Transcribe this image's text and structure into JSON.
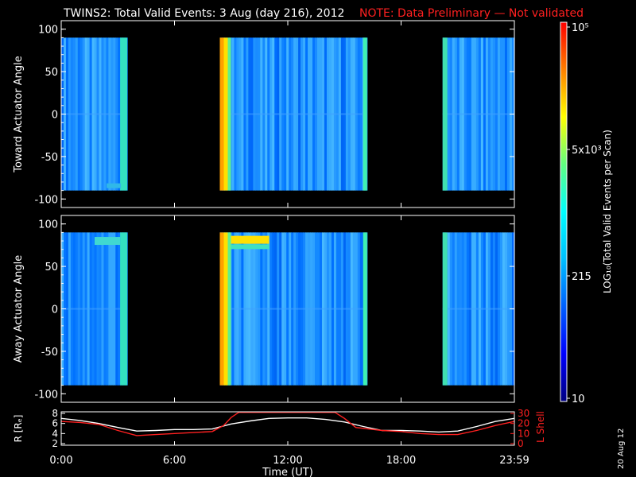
{
  "title": {
    "main": "TWINS2: Total Valid Events:  3 Aug (day 216), 2012",
    "note": "NOTE: Data Preliminary — Not validated",
    "note_color": "#ff2020"
  },
  "side_date": "20 Aug 12",
  "chart_data": [
    {
      "type": "heatmap",
      "name_text": "Toward Actuator Angle",
      "ylabel": "Toward Actuator Angle",
      "xlabel": "",
      "xlim": [
        0,
        24
      ],
      "ylim": [
        -110,
        110
      ],
      "y_ticks": [
        100,
        50,
        0,
        -50,
        -100
      ],
      "y_tick_labels": [
        "100",
        "50",
        "0",
        "-50",
        "-100"
      ],
      "data_range": [
        -90,
        90
      ],
      "data_blocks_hours": [
        [
          0,
          3.5
        ],
        [
          8.4,
          16.2
        ],
        [
          20.2,
          24
        ]
      ]
    },
    {
      "type": "heatmap",
      "name_text": "Away Actuator Angle",
      "ylabel": "Away Actuator Angle",
      "xlabel": "",
      "xlim": [
        0,
        24
      ],
      "ylim": [
        -110,
        110
      ],
      "y_ticks": [
        100,
        50,
        0,
        -50,
        -100
      ],
      "y_tick_labels": [
        "100",
        "50",
        "0",
        "-50",
        "-100"
      ],
      "data_range": [
        -90,
        90
      ],
      "data_blocks_hours": [
        [
          0,
          3.5
        ],
        [
          8.4,
          16.2
        ],
        [
          20.2,
          24
        ]
      ]
    },
    {
      "type": "line",
      "ylabel_left": "R [Rₑ]",
      "ylabel_right": "L Shell",
      "right_color": "#ff2020",
      "xlabel": "Time (UT)",
      "x_ticks": [
        0,
        6,
        12,
        18,
        24
      ],
      "x_tick_labels": [
        "0:00",
        "6:00",
        "12:00",
        "18:00",
        "23:59"
      ],
      "left_ylim": [
        2,
        8
      ],
      "left_ticks": [
        "8",
        "6",
        "4",
        "2"
      ],
      "right_ylim": [
        0,
        30
      ],
      "right_ticks": [
        "30",
        "20",
        "10",
        "0"
      ],
      "series": [
        {
          "name": "R [Rₑ]",
          "color": "#ffffff",
          "axis": "left",
          "x": [
            0,
            1,
            2,
            3,
            4,
            5,
            6,
            7,
            8,
            9,
            10,
            11,
            12,
            13,
            14,
            15,
            16,
            17,
            18,
            19,
            20,
            21,
            22,
            23,
            24
          ],
          "values": [
            7.0,
            6.6,
            6.0,
            5.2,
            4.5,
            4.6,
            4.8,
            4.8,
            4.9,
            5.9,
            6.5,
            7.0,
            7.1,
            7.1,
            6.8,
            6.3,
            5.4,
            4.6,
            4.6,
            4.5,
            4.3,
            4.5,
            5.4,
            6.4,
            7.0
          ]
        },
        {
          "name": "L Shell",
          "color": "#ff2020",
          "axis": "right",
          "x": [
            0,
            1,
            2,
            3,
            4,
            5,
            6,
            7,
            8,
            8.6,
            9.0,
            9.4,
            14.5,
            15.0,
            15.6,
            17,
            18,
            19,
            20,
            21,
            22,
            23,
            24
          ],
          "values": [
            22,
            21,
            19,
            13,
            8,
            9,
            10,
            11,
            12,
            18,
            26,
            31,
            31,
            25,
            16,
            13,
            12,
            10,
            9,
            9,
            13,
            18,
            22
          ]
        }
      ]
    }
  ],
  "colorbar": {
    "label": "LOG₁₀(Total Valid Events per Scan)",
    "tick_labels": [
      "10⁵",
      "5x10³",
      "215",
      "10"
    ],
    "colors": [
      "#000080",
      "#0000ff",
      "#0060ff",
      "#00c0ff",
      "#00ffff",
      "#60ff80",
      "#ffff00",
      "#ff8000",
      "#ff0000"
    ]
  }
}
